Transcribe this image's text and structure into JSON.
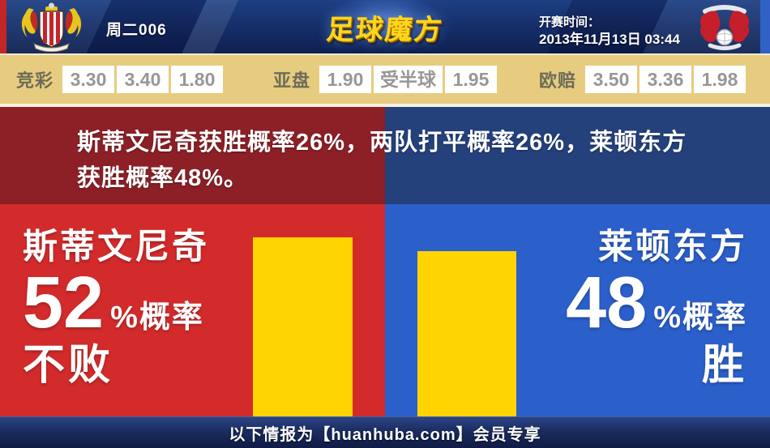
{
  "header": {
    "match_label": "周二006",
    "site_logo": "足球魔方",
    "kickoff_label": "开赛时间：",
    "kickoff_time": "2013年11月13日 03:44",
    "home_crest": "stevenage-crest",
    "away_crest": "leyton-orient-crest"
  },
  "odds_bar": {
    "groups": [
      {
        "label": "竞彩",
        "values": [
          "3.30",
          "3.40",
          "1.80"
        ]
      },
      {
        "label": "亚盘",
        "values": [
          "1.90",
          "受半球",
          "1.95"
        ]
      },
      {
        "label": "欧赔",
        "values": [
          "3.50",
          "3.36",
          "1.98"
        ]
      }
    ]
  },
  "analysis": {
    "summary_lines": [
      "斯蒂文尼奇获胜概率26%，两队打平概率26%，莱顿东方",
      "获胜概率48%。"
    ],
    "home": {
      "team": "斯蒂文尼奇",
      "percent": "52",
      "percent_suffix": "%概率",
      "outcome": "不败",
      "probability": 52
    },
    "away": {
      "team": "莱顿东方",
      "percent": "48",
      "percent_suffix": "%概率",
      "outcome": "胜",
      "probability": 48
    }
  },
  "footer": {
    "text": "以下情报为【huanhuba.com】会员专享"
  },
  "colors": {
    "home_accent": "#d32b2b",
    "home_dark": "#8c2026",
    "away_accent": "#2b5fca",
    "away_dark": "#24417c",
    "bar_yellow": "#ffd400",
    "odds_bg": "#e7cc80",
    "header_navy": "#16306b"
  }
}
